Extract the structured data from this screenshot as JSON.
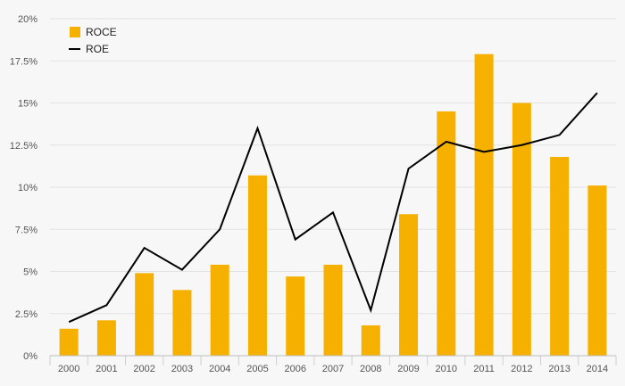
{
  "chart_data": {
    "type": "bar",
    "categories": [
      "2000",
      "2001",
      "2002",
      "2003",
      "2004",
      "2005",
      "2006",
      "2007",
      "2008",
      "2009",
      "2010",
      "2011",
      "2012",
      "2013",
      "2014"
    ],
    "series": [
      {
        "name": "ROCE",
        "type": "bar",
        "color": "#f5b000",
        "values": [
          1.6,
          2.1,
          4.9,
          3.9,
          5.4,
          10.7,
          4.7,
          5.4,
          1.8,
          8.4,
          14.5,
          17.9,
          15.0,
          11.8,
          10.1
        ]
      },
      {
        "name": "ROE",
        "type": "line",
        "color": "#000000",
        "values": [
          2.0,
          3.0,
          6.4,
          5.1,
          7.5,
          13.5,
          6.9,
          8.5,
          2.7,
          11.1,
          12.7,
          12.1,
          12.5,
          13.1,
          15.6
        ]
      }
    ],
    "yticks": [
      0,
      2.5,
      5,
      7.5,
      10,
      12.5,
      15,
      17.5,
      20
    ],
    "ytick_labels": [
      "0%",
      "2.5%",
      "5%",
      "7.5%",
      "10%",
      "12.5%",
      "15%",
      "17.5%",
      "20%"
    ],
    "ylim": [
      0,
      20
    ],
    "grid": true,
    "legend_position": "top-left"
  }
}
